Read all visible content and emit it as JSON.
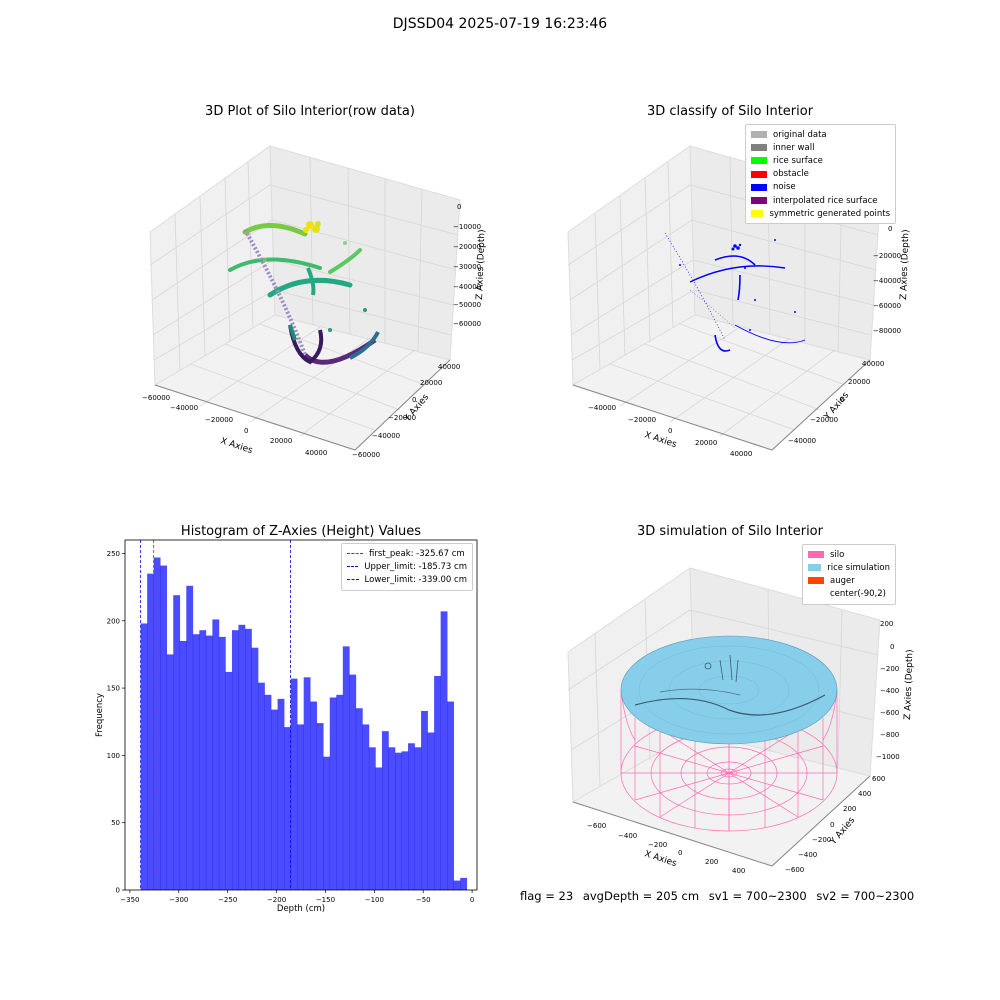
{
  "suptitle": "DJSSD04 2025-07-19 16:23:46",
  "panels": {
    "raw": {
      "title": "3D Plot of Silo Interior(row data)",
      "xlabel": "X Axies",
      "ylabel": "Y Axies",
      "zlabel": "Z Axies (Depth)",
      "xticks": [
        "−60000",
        "−40000",
        "−20000",
        "0",
        "20000",
        "40000"
      ],
      "yticks": [
        "−60000",
        "−40000",
        "−20000",
        "0",
        "20000",
        "40000"
      ],
      "zticks": [
        "0",
        "−10000",
        "−20000",
        "−30000",
        "−40000",
        "−50000",
        "−60000"
      ]
    },
    "classify": {
      "title": "3D classify of Silo Interior",
      "xlabel": "X Axies",
      "ylabel": "Y Axies",
      "zlabel": "Z Axies (Depth)",
      "xticks": [
        "−40000",
        "−20000",
        "0",
        "20000",
        "40000"
      ],
      "yticks": [
        "−40000",
        "−20000",
        "0",
        "20000",
        "40000"
      ],
      "zticks": [
        "20000",
        "0",
        "−20000",
        "−40000",
        "−60000",
        "−80000"
      ],
      "legend": [
        {
          "label": "original data",
          "color": "#b0b0b0"
        },
        {
          "label": "inner wall",
          "color": "#808080"
        },
        {
          "label": "rice surface",
          "color": "#00ff00"
        },
        {
          "label": "obstacle",
          "color": "#ff0000"
        },
        {
          "label": "noise",
          "color": "#0000ff"
        },
        {
          "label": "interpolated rice surface",
          "color": "#800080"
        },
        {
          "label": "symmetric generated points",
          "color": "#ffff00"
        }
      ]
    },
    "simulation": {
      "title": "3D simulation of Silo Interior",
      "xlabel": "X Axies",
      "ylabel": "Y Axies",
      "zlabel": "Z Axies (Depth)",
      "xticks": [
        "−600",
        "−400",
        "−200",
        "0",
        "200",
        "400"
      ],
      "yticks": [
        "−600",
        "−400",
        "−200",
        "0",
        "200",
        "400",
        "600"
      ],
      "zticks": [
        "200",
        "0",
        "−200",
        "−400",
        "−600",
        "−800",
        "−1000"
      ],
      "legend": [
        {
          "label": "silo",
          "color": "#ff69b4"
        },
        {
          "label": "rice simulation",
          "color": "#87ceeb"
        },
        {
          "label": "auger",
          "color": "#ff4500"
        },
        {
          "label": "center(-90,2)",
          "color": "none"
        }
      ]
    }
  },
  "chart_data": [
    {
      "type": "bar",
      "title": "Histogram of Z-Axies (Height) Values",
      "xlabel": "Depth (cm)",
      "ylabel": "Frequency",
      "xlim": [
        -355,
        5
      ],
      "ylim": [
        0,
        260
      ],
      "xticks": [
        -350,
        -300,
        -250,
        -200,
        -150,
        -100,
        -50,
        0
      ],
      "yticks": [
        0,
        50,
        100,
        150,
        200,
        250
      ],
      "bar_color": "#0000ff",
      "bin_start": -339,
      "bin_width": 6.67,
      "values": [
        198,
        235,
        247,
        241,
        175,
        219,
        185,
        226,
        190,
        193,
        189,
        201,
        188,
        162,
        193,
        197,
        194,
        180,
        154,
        145,
        134,
        142,
        121,
        157,
        123,
        158,
        140,
        124,
        99,
        143,
        145,
        181,
        160,
        135,
        123,
        106,
        91,
        118,
        106,
        102,
        103,
        109,
        106,
        133,
        117,
        159,
        207,
        140,
        7,
        9
      ],
      "vlines": [
        {
          "label": "first_peak: -325.67 cm",
          "x": -325.67,
          "color": "#ff0000"
        },
        {
          "label": "Upper_limit: -185.73 cm",
          "x": -185.73,
          "color": "#0000ff"
        },
        {
          "label": "Lower_limit: -339.00 cm",
          "x": -339.0,
          "color": "#0000ff"
        }
      ]
    }
  ],
  "footer": {
    "flag": "flag = 23",
    "avg": "avgDepth = 205 cm",
    "sv1": "sv1 = 700~2300",
    "sv2": "sv2 = 700~2300"
  }
}
